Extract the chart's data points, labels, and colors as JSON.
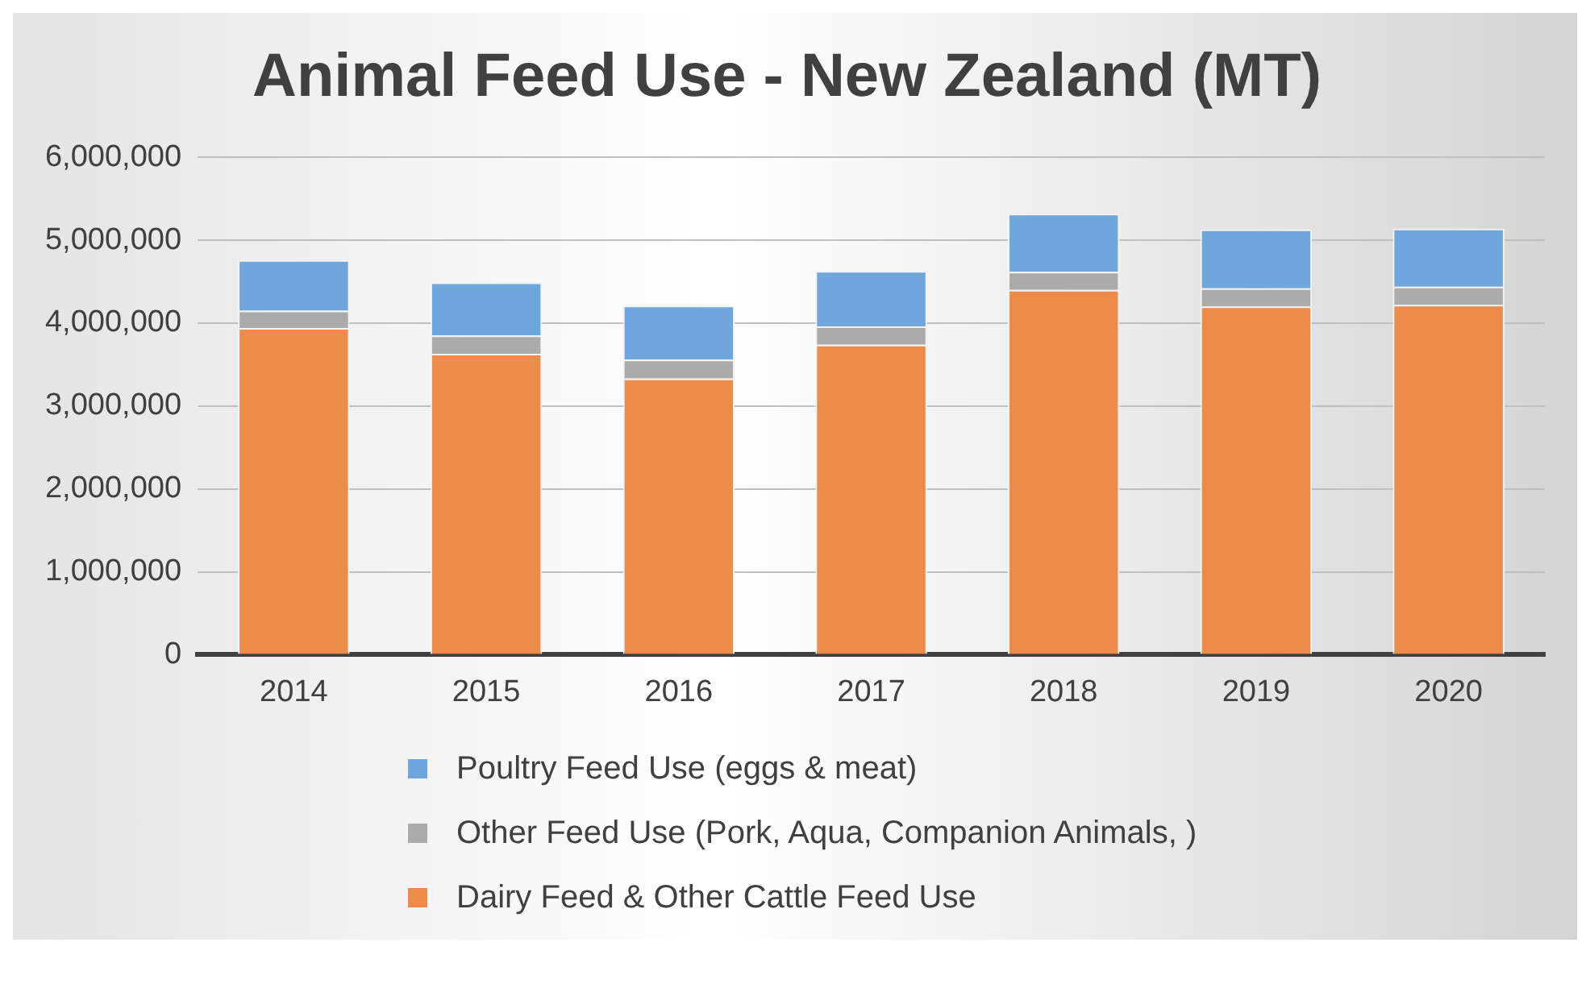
{
  "chart_data": {
    "type": "bar",
    "title": "Animal Feed Use - New Zealand (MT)",
    "categories": [
      "2014",
      "2015",
      "2016",
      "2017",
      "2018",
      "2019",
      "2020"
    ],
    "stacked": true,
    "series": [
      {
        "name": "Dairy Feed & Other Cattle Feed Use",
        "color": "#ed8b4a",
        "values": [
          3940000,
          3630000,
          3330000,
          3740000,
          4400000,
          4200000,
          4220000
        ]
      },
      {
        "name": "Other Feed Use (Pork, Aqua, Companion Animals, )",
        "color": "#ababab",
        "values": [
          210000,
          220000,
          230000,
          220000,
          220000,
          220000,
          220000
        ]
      },
      {
        "name": "Poultry Feed Use (eggs & meat)",
        "color": "#6fa6db",
        "values": [
          610000,
          640000,
          650000,
          670000,
          700000,
          710000,
          700000
        ]
      }
    ],
    "ylim": [
      0,
      6000000
    ],
    "yticks": [
      0,
      {
        "value": 1000000,
        "label": "1,000,000"
      },
      {
        "value": 2000000,
        "label": "2,000,000"
      },
      {
        "value": 3000000,
        "label": "3,000,000"
      },
      {
        "value": 4000000,
        "label": "4,000,000"
      },
      {
        "value": 5000000,
        "label": "5,000,000"
      },
      {
        "value": 6000000,
        "label": "6,000,000"
      }
    ],
    "grid": "y",
    "legend": "bottom"
  }
}
